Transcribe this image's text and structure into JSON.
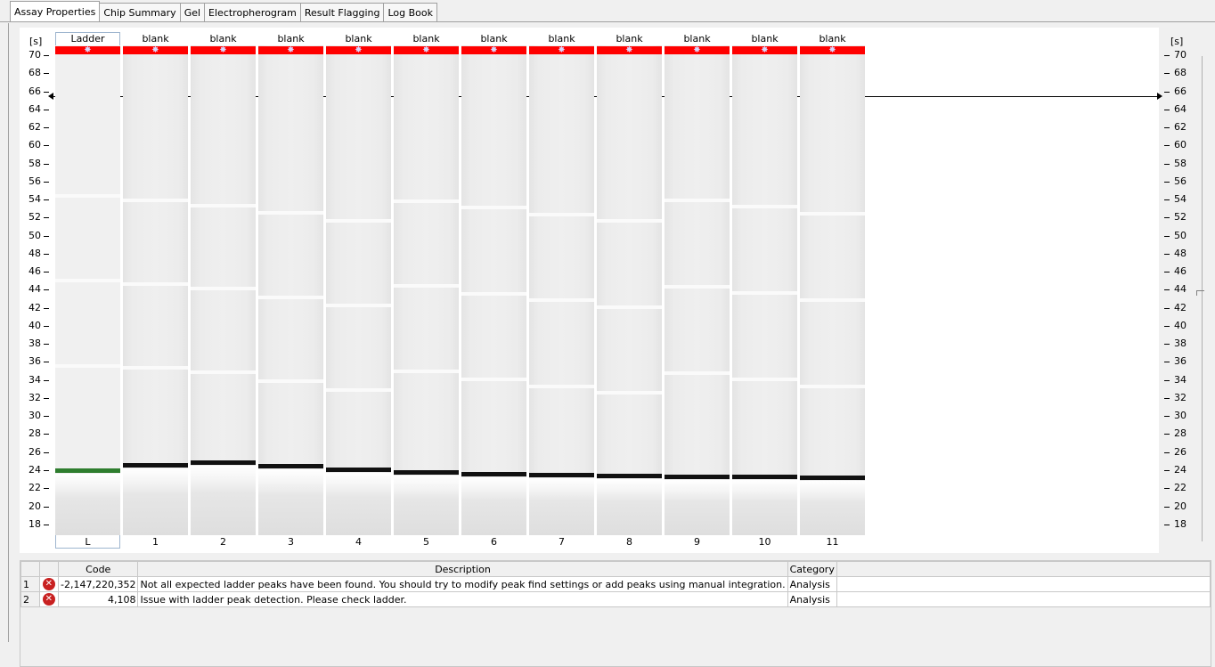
{
  "tabs": [
    {
      "label": "Assay Properties",
      "active": true
    },
    {
      "label": "Chip Summary",
      "active": false
    },
    {
      "label": "Gel",
      "active": false
    },
    {
      "label": "Electropherogram",
      "active": false
    },
    {
      "label": "Result Flagging",
      "active": false
    },
    {
      "label": "Log Book",
      "active": false
    }
  ],
  "gel": {
    "axis_unit": "[s]",
    "ticks": [
      "70",
      "68",
      "66",
      "64",
      "62",
      "60",
      "58",
      "56",
      "54",
      "52",
      "50",
      "48",
      "46",
      "44",
      "42",
      "40",
      "38",
      "36",
      "34",
      "32",
      "30",
      "28",
      "26",
      "24",
      "22",
      "20",
      "18"
    ],
    "lanes": [
      {
        "name": "Ladder",
        "number": "L"
      },
      {
        "name": "blank",
        "number": "1"
      },
      {
        "name": "blank",
        "number": "2"
      },
      {
        "name": "blank",
        "number": "3"
      },
      {
        "name": "blank",
        "number": "4"
      },
      {
        "name": "blank",
        "number": "5"
      },
      {
        "name": "blank",
        "number": "6"
      },
      {
        "name": "blank",
        "number": "7"
      },
      {
        "name": "blank",
        "number": "8"
      },
      {
        "name": "blank",
        "number": "9"
      },
      {
        "name": "blank",
        "number": "10"
      },
      {
        "name": "blank",
        "number": "11"
      }
    ],
    "band_times_s": [
      24.0,
      24.6,
      24.9,
      24.5,
      24.1,
      23.8,
      23.6,
      23.5,
      23.4,
      23.3,
      23.3,
      23.2
    ],
    "ladder_band_color": "#2e7d2e",
    "marker_color": "#ff0000",
    "cursor_time_s": 65.5
  },
  "table": {
    "headers": [
      "",
      "",
      "Code",
      "Description",
      "Category",
      ""
    ],
    "rows": [
      {
        "num": "1",
        "icon": "error-icon",
        "code": "-2,147,220,352",
        "description": "Not all expected ladder peaks have been found. You should try to modify peak find settings or add peaks using manual integration.",
        "category": "Analysis"
      },
      {
        "num": "2",
        "icon": "error-icon",
        "code": "4,108",
        "description": "Issue with ladder peak detection. Please check ladder.",
        "category": "Analysis"
      }
    ]
  }
}
